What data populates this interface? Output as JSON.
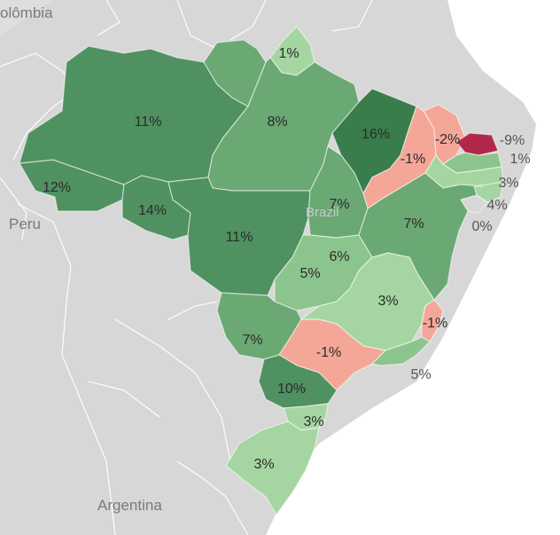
{
  "map": {
    "countries": {
      "colombia": "olômbia",
      "peru": "Peru",
      "argentina": "Argentina",
      "brazil": "Brazil"
    },
    "colors": {
      "background_land": "#d7d7d7",
      "green_darkest": "#3a7d4c",
      "green_dark": "#4f9160",
      "green_mid": "#6aa874",
      "green_light": "#8cc48d",
      "green_lighter": "#a5d6a2",
      "red_light": "#f4a797",
      "red_deep": "#b1284a"
    },
    "states": [
      {
        "id": "AC",
        "label": "12%",
        "value": 12
      },
      {
        "id": "AM",
        "label": "11%",
        "value": 11
      },
      {
        "id": "RR",
        "label": "",
        "value": null
      },
      {
        "id": "AP",
        "label": "1%",
        "value": 1
      },
      {
        "id": "PA",
        "label": "8%",
        "value": 8
      },
      {
        "id": "RO",
        "label": "14%",
        "value": 14
      },
      {
        "id": "MT",
        "label": "11%",
        "value": 11
      },
      {
        "id": "MA",
        "label": "16%",
        "value": 16
      },
      {
        "id": "PI",
        "label": "-1%",
        "value": -1
      },
      {
        "id": "CE",
        "label": "-2%",
        "value": -2
      },
      {
        "id": "RN",
        "label": "-9%",
        "value": -9
      },
      {
        "id": "PB",
        "label": "1%",
        "value": 1
      },
      {
        "id": "PE",
        "label": "3%",
        "value": 3
      },
      {
        "id": "AL",
        "label": "4%",
        "value": 4
      },
      {
        "id": "SE",
        "label": "0%",
        "value": 0
      },
      {
        "id": "TO",
        "label": "7%",
        "value": 7
      },
      {
        "id": "BA",
        "label": "7%",
        "value": 7
      },
      {
        "id": "DF",
        "label": "6%",
        "value": 6
      },
      {
        "id": "GO",
        "label": "5%",
        "value": 5
      },
      {
        "id": "MG",
        "label": "3%",
        "value": 3
      },
      {
        "id": "ES",
        "label": "-1%",
        "value": -1
      },
      {
        "id": "MS",
        "label": "7%",
        "value": 7
      },
      {
        "id": "SP",
        "label": "-1%",
        "value": -1
      },
      {
        "id": "RJ",
        "label": "5%",
        "value": 5
      },
      {
        "id": "PR",
        "label": "10%",
        "value": 10
      },
      {
        "id": "SC",
        "label": "3%",
        "value": 3
      },
      {
        "id": "RS",
        "label": "3%",
        "value": 3
      }
    ]
  }
}
